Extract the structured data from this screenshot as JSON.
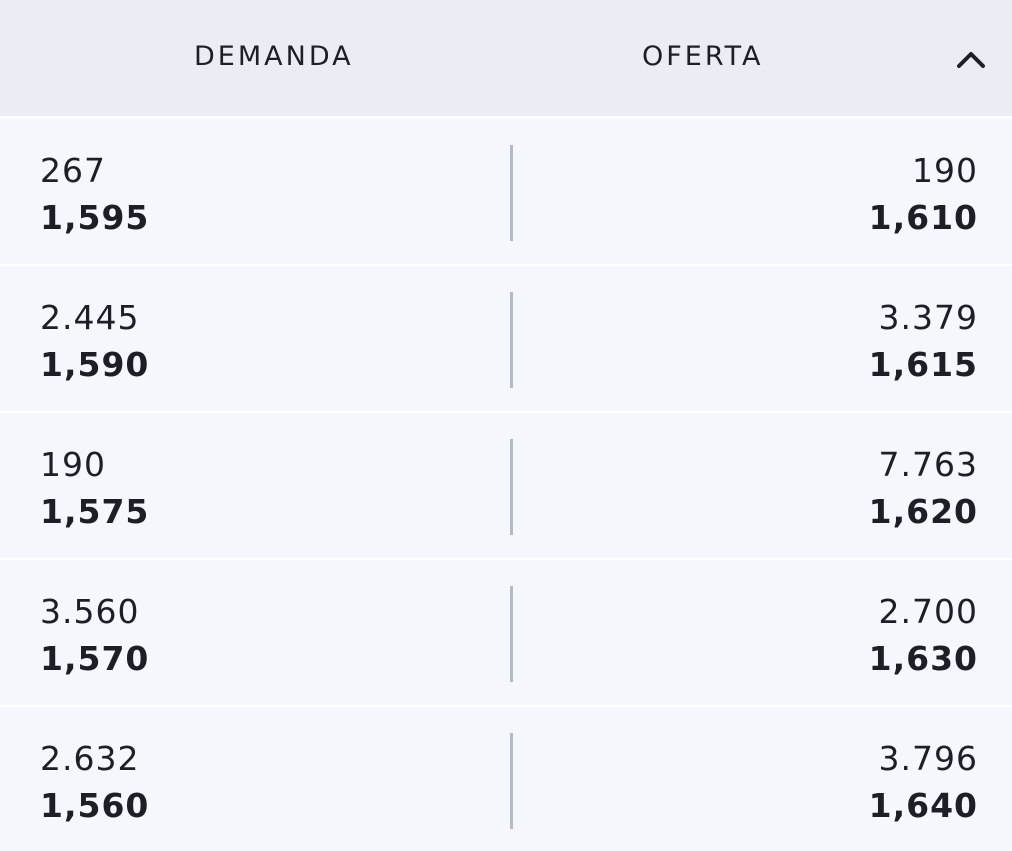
{
  "header": {
    "bid_title": "DEMANDA",
    "ask_title": "OFERTA",
    "collapse_icon": "chevron-up-icon"
  },
  "rows": [
    {
      "bid_qty": "267",
      "bid_price": "1,595",
      "ask_qty": "190",
      "ask_price": "1,610"
    },
    {
      "bid_qty": "2.445",
      "bid_price": "1,590",
      "ask_qty": "3.379",
      "ask_price": "1,615"
    },
    {
      "bid_qty": "190",
      "bid_price": "1,575",
      "ask_qty": "7.763",
      "ask_price": "1,620"
    },
    {
      "bid_qty": "3.560",
      "bid_price": "1,570",
      "ask_qty": "2.700",
      "ask_price": "1,630"
    },
    {
      "bid_qty": "2.632",
      "bid_price": "1,560",
      "ask_qty": "3.796",
      "ask_price": "1,640"
    }
  ]
}
